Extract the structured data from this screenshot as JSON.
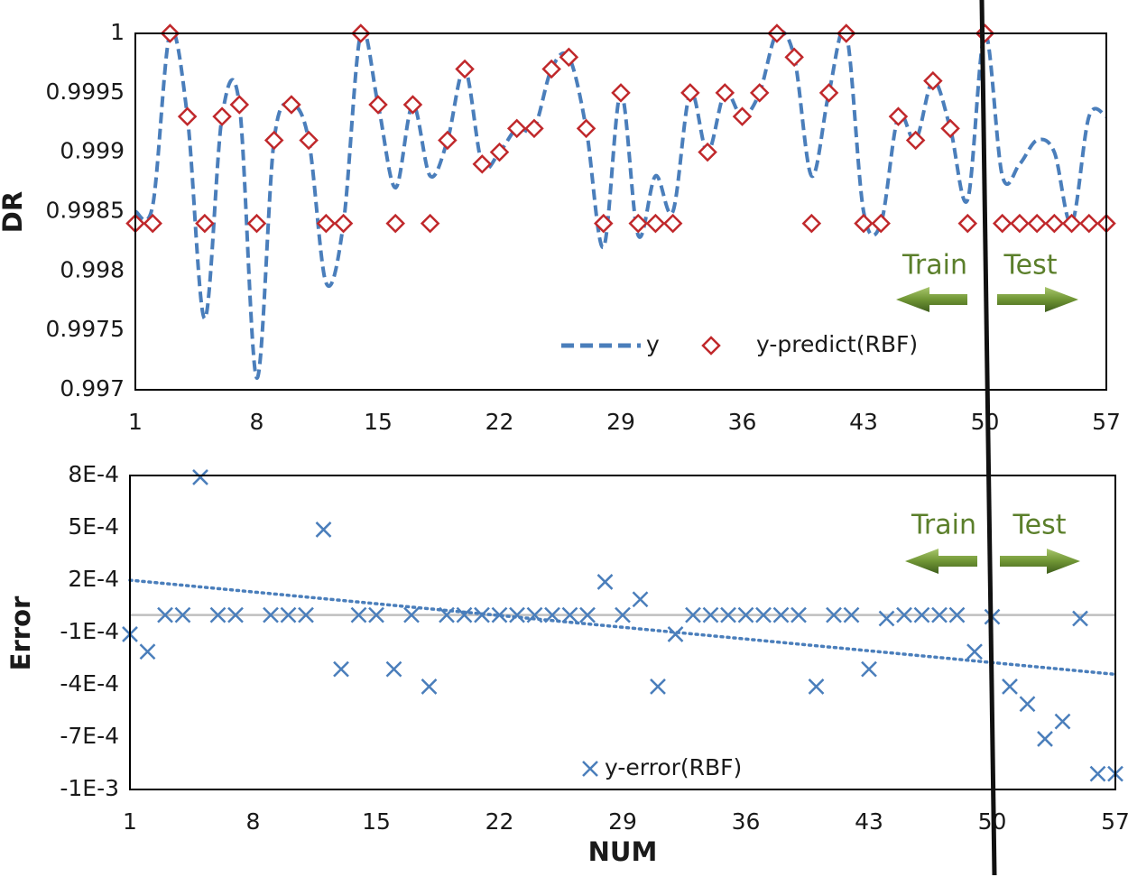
{
  "chart_data": [
    {
      "type": "line",
      "ylabel": "DR",
      "x": [
        1,
        2,
        3,
        4,
        5,
        6,
        7,
        8,
        9,
        10,
        11,
        12,
        13,
        14,
        15,
        16,
        17,
        18,
        19,
        20,
        21,
        22,
        23,
        24,
        25,
        26,
        27,
        28,
        29,
        30,
        31,
        32,
        33,
        34,
        35,
        36,
        37,
        38,
        39,
        40,
        41,
        42,
        43,
        44,
        45,
        46,
        47,
        48,
        49,
        50,
        51,
        52,
        53,
        54,
        55,
        56,
        57
      ],
      "xlim": [
        1,
        57
      ],
      "xticks": [
        1,
        8,
        15,
        22,
        29,
        36,
        43,
        50,
        57
      ],
      "ylim": [
        0.997,
        1
      ],
      "yticks": [
        0.997,
        0.9975,
        0.998,
        0.9985,
        0.999,
        0.9995,
        1
      ],
      "legend": "bottom",
      "annotations": [
        "Train",
        "Test"
      ],
      "series": [
        {
          "name": "y",
          "color": "#4a7ebb",
          "line": "dashed",
          "values": [
            0.9985,
            0.99855,
            1,
            0.9993,
            0.9976,
            0.9993,
            0.9994,
            0.9971,
            0.9991,
            0.9994,
            0.9991,
            0.9979,
            0.9984,
            1,
            0.9994,
            0.9987,
            0.9994,
            0.9988,
            0.9991,
            0.9997,
            0.9989,
            0.999,
            0.9992,
            0.9992,
            0.9997,
            0.9998,
            0.9992,
            0.9982,
            0.9995,
            0.9983,
            0.9988,
            0.9985,
            0.9995,
            0.999,
            0.9995,
            0.9993,
            0.9995,
            1,
            0.9998,
            0.9988,
            0.9995,
            1,
            0.9985,
            0.9984,
            0.9993,
            0.9991,
            0.9996,
            0.9992,
            0.9986,
            1,
            0.9988,
            0.9989,
            0.9991,
            0.999,
            0.9984,
            0.9993,
            0.9993
          ]
        },
        {
          "name": "y-predict(RBF)",
          "color": "#c0282b",
          "marker": "diamond",
          "values": [
            0.9984,
            0.9984,
            1,
            0.9993,
            0.9984,
            0.9993,
            0.9994,
            0.9984,
            0.9991,
            0.9994,
            0.9991,
            0.9984,
            0.9984,
            1,
            0.9994,
            0.9984,
            0.9994,
            0.9984,
            0.9991,
            0.9997,
            0.9989,
            0.999,
            0.9992,
            0.9992,
            0.9997,
            0.9998,
            0.9992,
            0.9984,
            0.9995,
            0.9984,
            0.9984,
            0.9984,
            0.9995,
            0.999,
            0.9995,
            0.9993,
            0.9995,
            1,
            0.9998,
            0.9984,
            0.9995,
            1,
            0.9984,
            0.9984,
            0.9993,
            0.9991,
            0.9996,
            0.9992,
            0.9984,
            1,
            0.9984,
            0.9984,
            0.9984,
            0.9984,
            0.9984,
            0.9984,
            0.9984
          ]
        }
      ]
    },
    {
      "type": "scatter",
      "xlabel": "NUM",
      "ylabel": "Error",
      "x": [
        1,
        2,
        3,
        4,
        5,
        6,
        7,
        8,
        9,
        10,
        11,
        12,
        13,
        14,
        15,
        16,
        17,
        18,
        19,
        20,
        21,
        22,
        23,
        24,
        25,
        26,
        27,
        28,
        29,
        30,
        31,
        32,
        33,
        34,
        35,
        36,
        37,
        38,
        39,
        40,
        41,
        42,
        43,
        44,
        45,
        46,
        47,
        48,
        49,
        50,
        51,
        52,
        53,
        54,
        55,
        56,
        57
      ],
      "xlim": [
        1,
        57
      ],
      "xticks": [
        1,
        8,
        15,
        22,
        29,
        36,
        43,
        50,
        57
      ],
      "ylim": [
        -0.001,
        0.0008
      ],
      "yticks": [
        {
          "value": -0.001,
          "label": "-1E-3"
        },
        {
          "value": -0.0007,
          "label": "-7E-4"
        },
        {
          "value": -0.0004,
          "label": "-4E-4"
        },
        {
          "value": -0.0001,
          "label": "-1E-4"
        },
        {
          "value": 0.0002,
          "label": "2E-4"
        },
        {
          "value": 0.0005,
          "label": "5E-4"
        },
        {
          "value": 0.0008,
          "label": "8E-4"
        }
      ],
      "reference_line": 0,
      "trendline": {
        "color": "#4a7ebb",
        "x": [
          1,
          57
        ],
        "values": [
          0.0002,
          -0.00034
        ]
      },
      "legend": "bottom",
      "annotations": [
        "Train",
        "Test"
      ],
      "series": [
        {
          "name": "y-error(RBF)",
          "color": "#4a7ebb",
          "marker": "x",
          "values": [
            -0.00011,
            -0.00021,
            0,
            0,
            0.00079,
            0,
            0,
            null,
            0,
            0,
            0,
            0.00049,
            -0.00031,
            0,
            0,
            -0.00031,
            0,
            -0.00041,
            0,
            0,
            0,
            0,
            0,
            0,
            0,
            0,
            0,
            0.00019,
            0,
            9e-05,
            -0.00041,
            -0.00011,
            0,
            0,
            0,
            0,
            0,
            0,
            0,
            -0.00041,
            0,
            0,
            -0.00031,
            -2e-05,
            0,
            0,
            0,
            0,
            -0.00021,
            -1e-05,
            -0.00041,
            -0.00051,
            -0.00071,
            -0.00061,
            -2e-05,
            -0.00091,
            -0.00091
          ]
        }
      ]
    }
  ]
}
